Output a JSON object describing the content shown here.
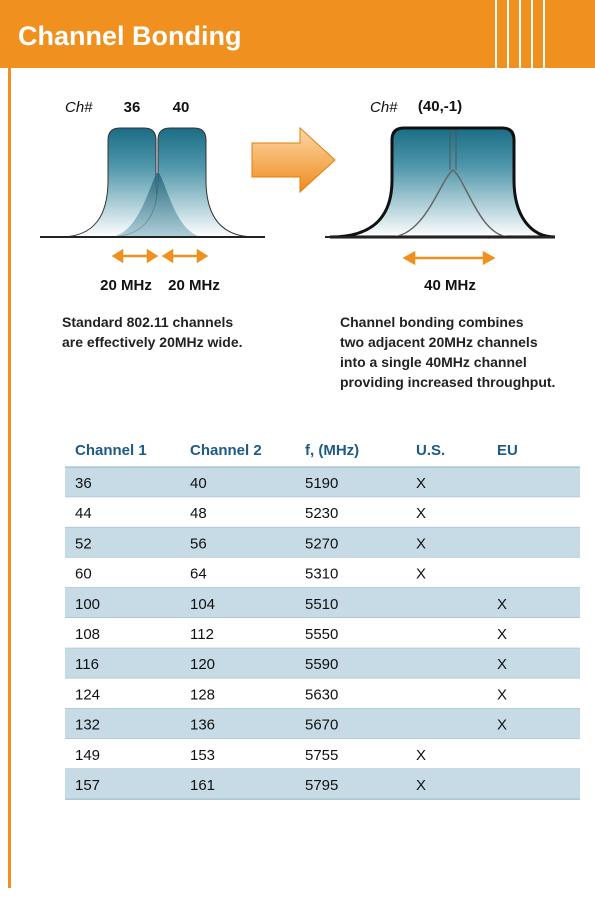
{
  "header": {
    "title": "Channel Bonding"
  },
  "diagram": {
    "left": {
      "ch_label": "Ch#",
      "channels": [
        "36",
        "40"
      ],
      "widths": [
        "20 MHz",
        "20 MHz"
      ],
      "caption": [
        "Standard 802.11 channels",
        "are effectively 20MHz wide."
      ]
    },
    "right": {
      "ch_label": "Ch#",
      "channel": "(40,-1)",
      "width": "40 MHz",
      "caption": [
        "Channel bonding combines",
        "two adjacent 20MHz channels",
        "into a single 40MHz channel",
        "providing increased throughput."
      ]
    }
  },
  "table": {
    "header": [
      "Channel 1",
      "Channel 2",
      "f, (MHz)",
      "U.S.",
      "EU"
    ],
    "rows": [
      [
        36,
        40,
        5190,
        "X",
        null
      ],
      [
        44,
        48,
        5230,
        "X",
        null
      ],
      [
        52,
        56,
        5270,
        "X",
        null
      ],
      [
        60,
        64,
        5310,
        "X",
        null
      ],
      [
        100,
        104,
        5510,
        null,
        "X"
      ],
      [
        108,
        112,
        5550,
        null,
        "X"
      ],
      [
        116,
        120,
        5590,
        null,
        "X"
      ],
      [
        124,
        128,
        5630,
        null,
        "X"
      ],
      [
        132,
        136,
        5670,
        null,
        "X"
      ],
      [
        149,
        153,
        5755,
        "X",
        null
      ],
      [
        157,
        161,
        5795,
        "X",
        null
      ]
    ]
  }
}
